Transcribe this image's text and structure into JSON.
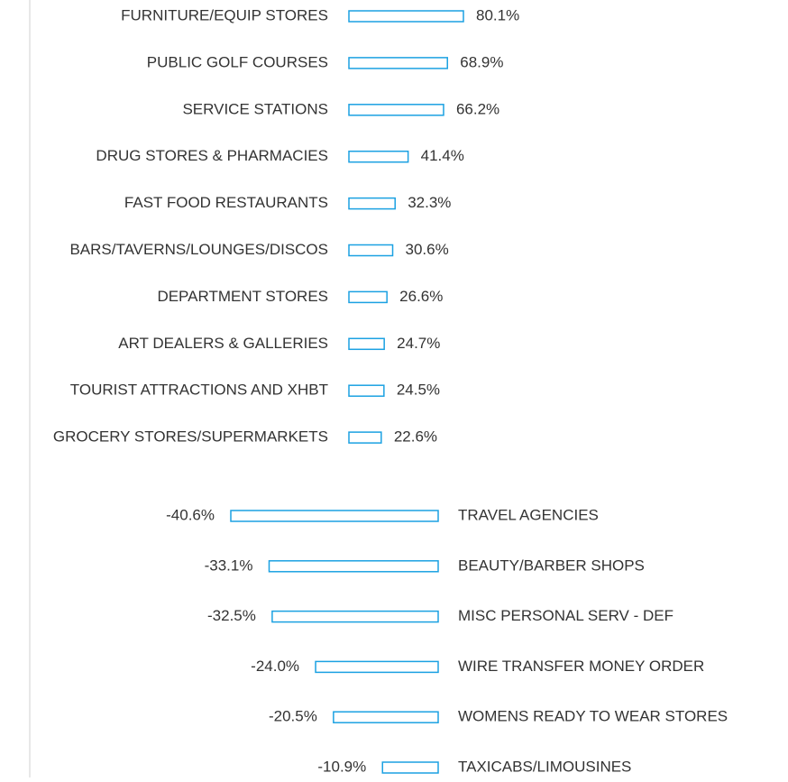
{
  "chart_data": [
    {
      "type": "bar",
      "color": "#1ba1e2",
      "categories": [
        "FURNITURE/EQUIP STORES",
        "PUBLIC GOLF COURSES",
        "SERVICE STATIONS",
        "DRUG STORES & PHARMACIES",
        "FAST FOOD RESTAURANTS",
        "BARS/TAVERNS/LOUNGES/DISCOS",
        "DEPARTMENT STORES",
        "ART DEALERS & GALLERIES",
        "TOURIST ATTRACTIONS AND XHBT",
        "GROCERY STORES/SUPERMARKETS"
      ],
      "values": [
        80.1,
        68.9,
        66.2,
        41.4,
        32.3,
        30.6,
        26.6,
        24.7,
        24.5,
        22.6
      ],
      "value_labels": [
        "80.1%",
        "68.9%",
        "66.2%",
        "41.4%",
        "32.3%",
        "30.6%",
        "26.6%",
        "24.7%",
        "24.5%",
        "22.6%"
      ]
    },
    {
      "type": "bar",
      "color": "#1ba1e2",
      "categories": [
        "TRAVEL AGENCIES",
        "BEAUTY/BARBER SHOPS",
        "MISC PERSONAL SERV - DEF",
        "WIRE TRANSFER MONEY ORDER",
        "WOMENS READY TO WEAR STORES",
        "TAXICABS/LIMOUSINES"
      ],
      "values": [
        -40.6,
        -33.1,
        -32.5,
        -24.0,
        -20.5,
        -10.9
      ],
      "value_labels": [
        "-40.6%",
        "-33.1%",
        "-32.5%",
        "-24.0%",
        "-20.5%",
        "-10.9%"
      ]
    }
  ]
}
